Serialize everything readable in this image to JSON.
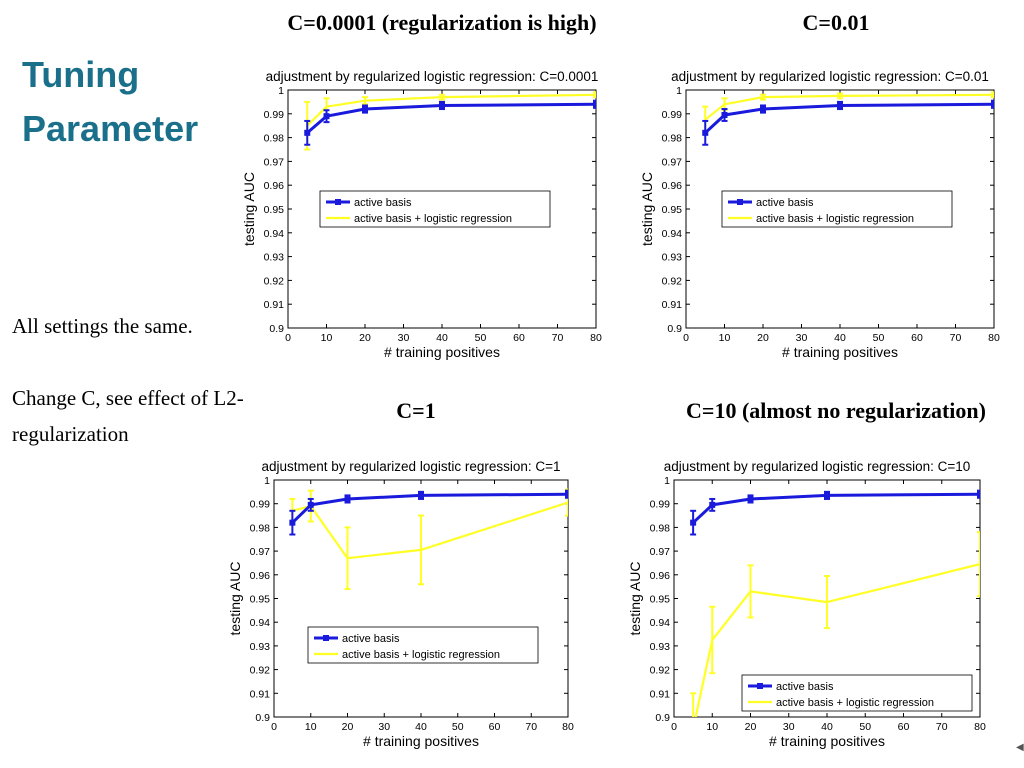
{
  "slide": {
    "title": "Tuning Parameter",
    "notes": [
      "All settings the same.",
      "Change C, see effect of L2-regularization"
    ]
  },
  "colors": {
    "title": "#1a6f8a",
    "active_basis": "#1a1adc",
    "logistic": "#ffff26"
  },
  "chart_data": [
    {
      "type": "line",
      "panel_title": "C=0.0001 (regularization is high)",
      "title": "adjustment by regularized logistic regression: C=0.0001",
      "xlabel": "# training positives",
      "ylabel": "testing AUC",
      "xlim": [
        0,
        80
      ],
      "ylim": [
        0.9,
        1
      ],
      "xticks": [
        "0",
        "10",
        "20",
        "30",
        "40",
        "50",
        "60",
        "70",
        "80"
      ],
      "yticks": [
        "0.9",
        "0.91",
        "0.92",
        "0.93",
        "0.94",
        "0.95",
        "0.96",
        "0.97",
        "0.98",
        "0.99",
        "1"
      ],
      "legend_position": "center",
      "x": [
        5,
        10,
        20,
        40,
        80
      ],
      "series": [
        {
          "name": "active basis",
          "color": "#1a1adc",
          "values": [
            0.982,
            0.989,
            0.992,
            0.9935,
            0.994
          ],
          "errors": [
            0.005,
            0.0025,
            0.0015,
            0.0015,
            0.0015
          ]
        },
        {
          "name": "active basis + logistic regression",
          "color": "#ffff26",
          "values": [
            0.985,
            0.993,
            0.9955,
            0.997,
            0.998
          ],
          "errors": [
            0.01,
            0.0035,
            0.0015,
            0.001,
            0.001
          ]
        }
      ]
    },
    {
      "type": "line",
      "panel_title": "C=0.01",
      "title": "adjustment by regularized logistic regression: C=0.01",
      "xlabel": "# training positives",
      "ylabel": "testing AUC",
      "xlim": [
        0,
        80
      ],
      "ylim": [
        0.9,
        1
      ],
      "xticks": [
        "0",
        "10",
        "20",
        "30",
        "40",
        "50",
        "60",
        "70",
        "80"
      ],
      "yticks": [
        "0.9",
        "0.91",
        "0.92",
        "0.93",
        "0.94",
        "0.95",
        "0.96",
        "0.97",
        "0.98",
        "0.99",
        "1"
      ],
      "legend_position": "center",
      "x": [
        5,
        10,
        20,
        40,
        80
      ],
      "series": [
        {
          "name": "active basis",
          "color": "#1a1adc",
          "values": [
            0.982,
            0.9895,
            0.992,
            0.9935,
            0.994
          ],
          "errors": [
            0.005,
            0.0025,
            0.0015,
            0.0015,
            0.0015
          ]
        },
        {
          "name": "active basis + logistic regression",
          "color": "#ffff26",
          "values": [
            0.9875,
            0.994,
            0.997,
            0.9975,
            0.998
          ],
          "errors": [
            0.0055,
            0.0025,
            0.001,
            0.001,
            0.001
          ]
        }
      ]
    },
    {
      "type": "line",
      "panel_title": "C=1",
      "title": "adjustment by regularized logistic regression: C=1",
      "xlabel": "# training positives",
      "ylabel": "testing AUC",
      "xlim": [
        0,
        80
      ],
      "ylim": [
        0.9,
        1
      ],
      "xticks": [
        "0",
        "10",
        "20",
        "30",
        "40",
        "50",
        "60",
        "70",
        "80"
      ],
      "yticks": [
        "0.9",
        "0.91",
        "0.92",
        "0.93",
        "0.94",
        "0.95",
        "0.96",
        "0.97",
        "0.98",
        "0.99",
        "1"
      ],
      "legend_position": "lower-center",
      "x": [
        5,
        10,
        20,
        40,
        80
      ],
      "series": [
        {
          "name": "active basis",
          "color": "#1a1adc",
          "values": [
            0.982,
            0.9895,
            0.992,
            0.9935,
            0.994
          ],
          "errors": [
            0.005,
            0.0025,
            0.0015,
            0.0015,
            0.0015
          ]
        },
        {
          "name": "active basis + logistic regression",
          "color": "#ffff26",
          "values": [
            0.987,
            0.989,
            0.967,
            0.9705,
            0.9905
          ],
          "errors": [
            0.005,
            0.0065,
            0.013,
            0.0145,
            0.0055
          ]
        }
      ]
    },
    {
      "type": "line",
      "panel_title": "C=10 (almost no regularization)",
      "title": "adjustment by regularized logistic regression: C=10",
      "xlabel": "# training positives",
      "ylabel": "testing AUC",
      "xlim": [
        0,
        80
      ],
      "ylim": [
        0.9,
        1
      ],
      "xticks": [
        "0",
        "10",
        "20",
        "30",
        "40",
        "50",
        "60",
        "70",
        "80"
      ],
      "yticks": [
        "0.9",
        "0.91",
        "0.92",
        "0.93",
        "0.94",
        "0.95",
        "0.96",
        "0.97",
        "0.98",
        "0.99",
        "1"
      ],
      "legend_position": "lower-right",
      "x": [
        5,
        10,
        20,
        40,
        80
      ],
      "series": [
        {
          "name": "active basis",
          "color": "#1a1adc",
          "values": [
            0.982,
            0.9895,
            0.992,
            0.9935,
            0.994
          ],
          "errors": [
            0.005,
            0.0025,
            0.0015,
            0.0015,
            0.0015
          ]
        },
        {
          "name": "active basis + logistic regression",
          "color": "#ffff26",
          "values": [
            0.895,
            0.9325,
            0.953,
            0.9485,
            0.9645
          ],
          "errors": [
            0.015,
            0.014,
            0.011,
            0.011,
            0.0135
          ]
        }
      ]
    }
  ]
}
